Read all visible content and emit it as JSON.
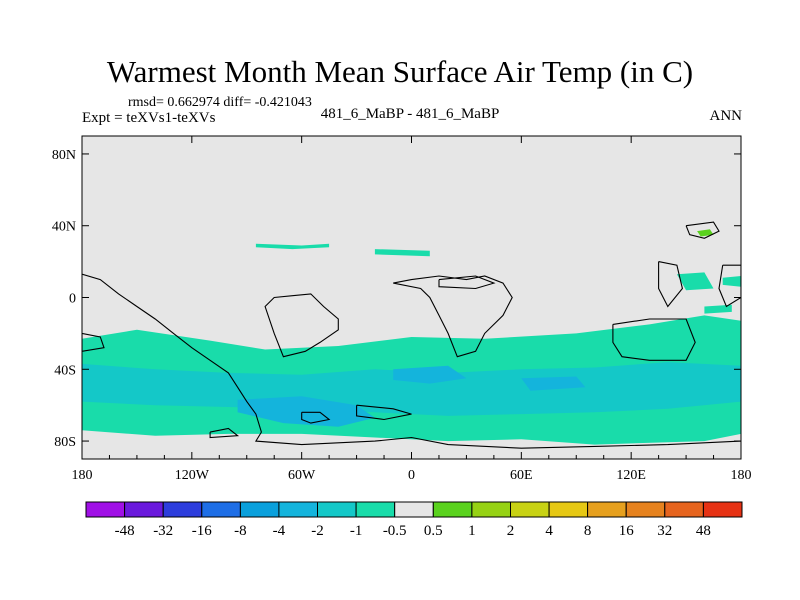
{
  "title": "Warmest Month Mean Surface Air Temp (in C)",
  "stats": "rmsd= 0.662974 diff= -0.421043",
  "left_label": "Expt = teXVs1-teXVs",
  "center_label": "481_6_MaBP - 481_6_MaBP",
  "right_label": "ANN",
  "chart_data": {
    "type": "heatmap",
    "projection": "cylindrical-equidistant",
    "xlim": [
      -180,
      180
    ],
    "ylim": [
      -90,
      90
    ],
    "x_ticks": [
      {
        "value": -180,
        "label": "180"
      },
      {
        "value": -120,
        "label": "120W"
      },
      {
        "value": -60,
        "label": "60W"
      },
      {
        "value": 0,
        "label": "0"
      },
      {
        "value": 60,
        "label": "60E"
      },
      {
        "value": 120,
        "label": "120E"
      },
      {
        "value": 180,
        "label": "180"
      }
    ],
    "y_ticks": [
      {
        "value": 80,
        "label": "80N"
      },
      {
        "value": 40,
        "label": "40N"
      },
      {
        "value": 0,
        "label": "0"
      },
      {
        "value": -40,
        "label": "40S"
      },
      {
        "value": -80,
        "label": "80S"
      }
    ],
    "background_color": "#e6e6e6",
    "colorbar": {
      "colors": [
        "#a010e6",
        "#6a19dc",
        "#2d3ddc",
        "#1e6ee6",
        "#0aa0dc",
        "#14b4dc",
        "#14c8c8",
        "#19dcaa",
        "#e6e6e6",
        "#5ad21e",
        "#96d214",
        "#c8d214",
        "#e6c814",
        "#e6a01e",
        "#e6821e",
        "#e6641e",
        "#e63214"
      ],
      "labels": [
        "-48",
        "-32",
        "-16",
        "-8",
        "-4",
        "-2",
        "-1",
        "-0.5",
        "0.5",
        "1",
        "2",
        "4",
        "8",
        "16",
        "32",
        "48"
      ]
    },
    "fields": [
      {
        "band": "-1 to -0.5",
        "color": "#19dcaa",
        "polygons": [
          [
            [
              -180,
              -23
            ],
            [
              -150,
              -18
            ],
            [
              -110,
              -24
            ],
            [
              -80,
              -29
            ],
            [
              -40,
              -27
            ],
            [
              0,
              -22
            ],
            [
              40,
              -23
            ],
            [
              90,
              -20
            ],
            [
              130,
              -15
            ],
            [
              160,
              -10
            ],
            [
              180,
              -13
            ],
            [
              180,
              -76
            ],
            [
              160,
              -80
            ],
            [
              100,
              -82
            ],
            [
              60,
              -79
            ],
            [
              20,
              -80
            ],
            [
              -20,
              -78
            ],
            [
              -60,
              -76
            ],
            [
              -100,
              -76
            ],
            [
              -140,
              -77
            ],
            [
              -180,
              -74
            ]
          ],
          [
            [
              -85,
              30
            ],
            [
              -60,
              29
            ],
            [
              -45,
              30
            ],
            [
              -45,
              28
            ],
            [
              -65,
              27
            ],
            [
              -85,
              28
            ]
          ],
          [
            [
              -20,
              27
            ],
            [
              10,
              26
            ],
            [
              10,
              23
            ],
            [
              -20,
              24
            ]
          ],
          [
            [
              145,
              13
            ],
            [
              160,
              14
            ],
            [
              165,
              5
            ],
            [
              150,
              4
            ]
          ],
          [
            [
              170,
              11
            ],
            [
              180,
              12
            ],
            [
              180,
              6
            ],
            [
              170,
              7
            ]
          ],
          [
            [
              160,
              -5
            ],
            [
              175,
              -4
            ],
            [
              175,
              -8
            ],
            [
              160,
              -9
            ]
          ]
        ]
      },
      {
        "band": "-2 to -1",
        "color": "#14c8c8",
        "polygons": [
          [
            [
              -180,
              -37
            ],
            [
              -140,
              -40
            ],
            [
              -100,
              -42
            ],
            [
              -60,
              -43
            ],
            [
              -20,
              -40
            ],
            [
              20,
              -42
            ],
            [
              60,
              -40
            ],
            [
              100,
              -39
            ],
            [
              140,
              -36
            ],
            [
              180,
              -38
            ],
            [
              180,
              -58
            ],
            [
              140,
              -62
            ],
            [
              100,
              -64
            ],
            [
              60,
              -65
            ],
            [
              20,
              -66
            ],
            [
              -20,
              -64
            ],
            [
              -60,
              -62
            ],
            [
              -100,
              -61
            ],
            [
              -140,
              -60
            ],
            [
              -180,
              -58
            ]
          ]
        ]
      },
      {
        "band": "-4 to -2",
        "color": "#14b4dc",
        "polygons": [
          [
            [
              -95,
              -57
            ],
            [
              -60,
              -55
            ],
            [
              -30,
              -60
            ],
            [
              -20,
              -67
            ],
            [
              -40,
              -72
            ],
            [
              -70,
              -70
            ],
            [
              -95,
              -64
            ]
          ],
          [
            [
              -10,
              -40
            ],
            [
              20,
              -38
            ],
            [
              30,
              -45
            ],
            [
              10,
              -48
            ],
            [
              -10,
              -46
            ]
          ],
          [
            [
              60,
              -45
            ],
            [
              90,
              -44
            ],
            [
              95,
              -50
            ],
            [
              65,
              -52
            ]
          ]
        ]
      },
      {
        "band": "1 to 2",
        "color": "#5ad21e",
        "polygons": [
          [
            [
              156,
              37
            ],
            [
              163,
              38
            ],
            [
              165,
              35
            ],
            [
              158,
              34
            ]
          ]
        ]
      }
    ],
    "coastlines": [
      [
        [
          -180,
          13
        ],
        [
          -170,
          10
        ],
        [
          -160,
          2
        ],
        [
          -150,
          -5
        ],
        [
          -140,
          -12
        ],
        [
          -130,
          -20
        ],
        [
          -120,
          -28
        ],
        [
          -110,
          -35
        ],
        [
          -100,
          -42
        ],
        [
          -95,
          -50
        ],
        [
          -90,
          -58
        ],
        [
          -85,
          -65
        ],
        [
          -82,
          -75
        ],
        [
          -85,
          -80
        ],
        [
          -60,
          -82
        ],
        [
          -20,
          -80
        ],
        [
          0,
          -78
        ],
        [
          20,
          -82
        ],
        [
          60,
          -84
        ],
        [
          100,
          -83
        ],
        [
          140,
          -82
        ],
        [
          180,
          -80
        ]
      ],
      [
        [
          -65,
          1
        ],
        [
          -55,
          2
        ],
        [
          -48,
          -5
        ],
        [
          -40,
          -12
        ],
        [
          -40,
          -18
        ],
        [
          -50,
          -25
        ],
        [
          -58,
          -30
        ],
        [
          -70,
          -33
        ],
        [
          -75,
          -20
        ],
        [
          -80,
          -5
        ],
        [
          -75,
          0
        ],
        [
          -65,
          1
        ]
      ],
      [
        [
          -10,
          8
        ],
        [
          5,
          5
        ],
        [
          10,
          0
        ],
        [
          15,
          -10
        ],
        [
          20,
          -20
        ],
        [
          25,
          -33
        ],
        [
          35,
          -30
        ],
        [
          40,
          -20
        ],
        [
          50,
          -10
        ],
        [
          55,
          0
        ],
        [
          50,
          8
        ],
        [
          40,
          12
        ],
        [
          30,
          10
        ],
        [
          15,
          12
        ],
        [
          0,
          10
        ],
        [
          -10,
          8
        ]
      ],
      [
        [
          15,
          10
        ],
        [
          35,
          12
        ],
        [
          45,
          8
        ],
        [
          35,
          5
        ],
        [
          15,
          6
        ],
        [
          15,
          10
        ]
      ],
      [
        [
          110,
          -15
        ],
        [
          130,
          -12
        ],
        [
          150,
          -12
        ],
        [
          155,
          -25
        ],
        [
          150,
          -35
        ],
        [
          130,
          -35
        ],
        [
          115,
          -33
        ],
        [
          110,
          -25
        ],
        [
          110,
          -15
        ]
      ],
      [
        [
          -30,
          -60
        ],
        [
          -10,
          -62
        ],
        [
          0,
          -65
        ],
        [
          -15,
          -68
        ],
        [
          -30,
          -66
        ],
        [
          -30,
          -60
        ]
      ],
      [
        [
          -60,
          -64
        ],
        [
          -50,
          -64
        ],
        [
          -45,
          -68
        ],
        [
          -55,
          -70
        ],
        [
          -60,
          -68
        ],
        [
          -60,
          -64
        ]
      ],
      [
        [
          -110,
          -75
        ],
        [
          -100,
          -73
        ],
        [
          -95,
          -77
        ],
        [
          -110,
          -78
        ],
        [
          -110,
          -75
        ]
      ],
      [
        [
          150,
          40
        ],
        [
          165,
          42
        ],
        [
          168,
          37
        ],
        [
          160,
          33
        ],
        [
          152,
          35
        ],
        [
          150,
          40
        ]
      ],
      [
        [
          135,
          20
        ],
        [
          145,
          18
        ],
        [
          148,
          5
        ],
        [
          140,
          -5
        ],
        [
          135,
          5
        ],
        [
          135,
          20
        ]
      ],
      [
        [
          170,
          18
        ],
        [
          180,
          18
        ],
        [
          180,
          0
        ],
        [
          172,
          -5
        ],
        [
          168,
          5
        ],
        [
          170,
          18
        ]
      ],
      [
        [
          -180,
          -20
        ],
        [
          -170,
          -22
        ],
        [
          -168,
          -28
        ],
        [
          -180,
          -30
        ],
        [
          -180,
          -20
        ]
      ]
    ]
  }
}
